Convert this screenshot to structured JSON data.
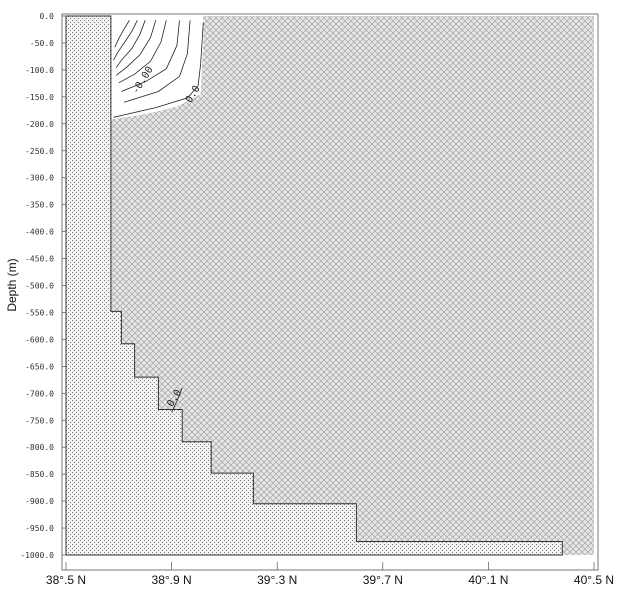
{
  "chart_data": {
    "type": "heatmap",
    "title": "",
    "xlabel": "",
    "ylabel": "Depth (m)",
    "xlim": [
      38.5,
      40.5
    ],
    "ylim": [
      -1000,
      0
    ],
    "x_tick_labels": [
      {
        "value": 38.5,
        "label": "38°.5 N"
      },
      {
        "value": 38.9,
        "label": "38°.9 N"
      },
      {
        "value": 39.3,
        "label": "39°.3 N"
      },
      {
        "value": 39.7,
        "label": "39°.7 N"
      },
      {
        "value": 40.1,
        "label": "40°.1 N"
      },
      {
        "value": 40.5,
        "label": "40°.5 N"
      }
    ],
    "y_tick_labels": [
      {
        "value": 0,
        "label": "0.0"
      },
      {
        "value": -50,
        "label": "-50.0"
      },
      {
        "value": -100,
        "label": "-100.0"
      },
      {
        "value": -150,
        "label": "-150.0"
      },
      {
        "value": -200,
        "label": "-200.0"
      },
      {
        "value": -250,
        "label": "-250.0"
      },
      {
        "value": -300,
        "label": "-300.0"
      },
      {
        "value": -350,
        "label": "-350.0"
      },
      {
        "value": -400,
        "label": "-400.0"
      },
      {
        "value": -450,
        "label": "-450.0"
      },
      {
        "value": -500,
        "label": "-500.0"
      },
      {
        "value": -550,
        "label": "-550.0"
      },
      {
        "value": -600,
        "label": "-600.0"
      },
      {
        "value": -650,
        "label": "-650.0"
      },
      {
        "value": -700,
        "label": "-700.0"
      },
      {
        "value": -750,
        "label": "-750.0"
      },
      {
        "value": -800,
        "label": "-800.0"
      },
      {
        "value": -850,
        "label": "-850.0"
      },
      {
        "value": -900,
        "label": "-900.0"
      },
      {
        "value": -950,
        "label": "-950.0"
      },
      {
        "value": -1000,
        "label": "-1000.0"
      }
    ],
    "bottom_profile": [
      [
        38.5,
        0
      ],
      [
        38.5,
        -1000
      ],
      [
        40.38,
        -1000
      ],
      [
        40.38,
        -975
      ],
      [
        39.6,
        -975
      ],
      [
        39.6,
        -905
      ],
      [
        39.21,
        -905
      ],
      [
        39.21,
        -848
      ],
      [
        39.05,
        -848
      ],
      [
        39.05,
        -790
      ],
      [
        38.94,
        -790
      ],
      [
        38.94,
        -730
      ],
      [
        38.85,
        -730
      ],
      [
        38.85,
        -670
      ],
      [
        38.76,
        -670
      ],
      [
        38.76,
        -608
      ],
      [
        38.71,
        -608
      ],
      [
        38.71,
        -548
      ],
      [
        38.67,
        -548
      ],
      [
        38.67,
        0
      ]
    ],
    "clean_region": [
      [
        38.67,
        0
      ],
      [
        39.02,
        0
      ],
      [
        39.02,
        -50
      ],
      [
        39.01,
        -145
      ],
      [
        38.92,
        -168
      ],
      [
        38.8,
        -182
      ],
      [
        38.67,
        -192
      ]
    ],
    "contours": [
      {
        "level": "0.0",
        "points": [
          [
            39.02,
            -12
          ],
          [
            39.01,
            -90
          ],
          [
            39.0,
            -130
          ],
          [
            38.96,
            -152
          ],
          [
            38.84,
            -170
          ],
          [
            38.68,
            -188
          ]
        ]
      },
      {
        "points": [
          [
            38.97,
            -8
          ],
          [
            38.96,
            -70
          ],
          [
            38.93,
            -112
          ],
          [
            38.85,
            -140
          ],
          [
            38.72,
            -160
          ]
        ]
      },
      {
        "points": [
          [
            38.93,
            -8
          ],
          [
            38.92,
            -55
          ],
          [
            38.88,
            -98
          ],
          [
            38.8,
            -122
          ],
          [
            38.71,
            -140
          ]
        ]
      },
      {
        "points": [
          [
            38.88,
            -8
          ],
          [
            38.86,
            -48
          ],
          [
            38.82,
            -84
          ],
          [
            38.76,
            -108
          ],
          [
            38.7,
            -124
          ]
        ]
      },
      {
        "points": [
          [
            38.84,
            -8
          ],
          [
            38.82,
            -40
          ],
          [
            38.78,
            -72
          ],
          [
            38.73,
            -95
          ],
          [
            38.69,
            -110
          ]
        ]
      },
      {
        "points": [
          [
            38.8,
            -8
          ],
          [
            38.78,
            -34
          ],
          [
            38.75,
            -60
          ],
          [
            38.71,
            -82
          ],
          [
            38.69,
            -96
          ]
        ]
      },
      {
        "points": [
          [
            38.77,
            -8
          ],
          [
            38.75,
            -28
          ],
          [
            38.72,
            -50
          ],
          [
            38.695,
            -68
          ],
          [
            38.68,
            -82
          ]
        ]
      },
      {
        "points": [
          [
            38.74,
            -8
          ],
          [
            38.72,
            -24
          ],
          [
            38.7,
            -42
          ],
          [
            38.685,
            -58
          ]
        ]
      },
      {
        "points": [
          [
            38.94,
            -690
          ],
          [
            38.92,
            -715
          ],
          [
            38.9,
            -735
          ]
        ]
      }
    ],
    "contour_labels": [
      {
        "text": "0.0",
        "x": 38.99,
        "y": -148
      },
      {
        "text": "-0.00",
        "x": 38.8,
        "y": -122
      },
      {
        "text": "0.0",
        "x": 38.92,
        "y": -712
      }
    ]
  }
}
